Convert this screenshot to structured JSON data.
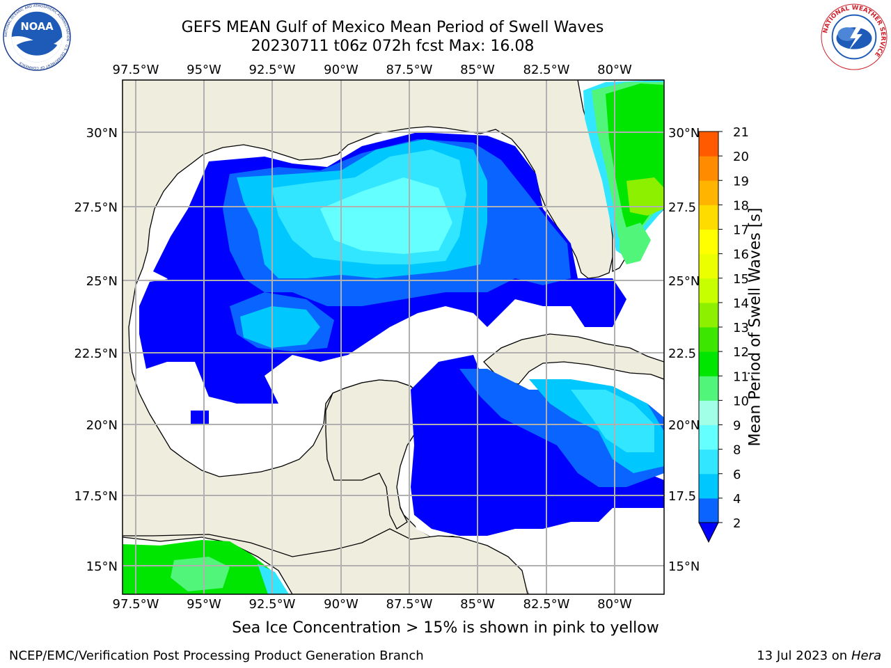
{
  "title_line1": "GEFS MEAN Gulf of Mexico Mean Period of Swell Waves",
  "title_line2": "20230711 t06z 072h fcst   Max: 16.08",
  "logos": {
    "left": {
      "name": "noaa-logo",
      "text": "NOAA",
      "ring": "NATIONAL OCEANIC AND ATMOSPHERIC ADMINISTRATION · U.S. DEPARTMENT OF COMMERCE"
    },
    "right": {
      "name": "nws-logo",
      "ring": "NATIONAL WEATHER SERVICE"
    }
  },
  "map": {
    "lon_labels": [
      "97.5°W",
      "95°W",
      "92.5°W",
      "90°W",
      "87.5°W",
      "85°W",
      "82.5°W",
      "80°W"
    ],
    "lat_labels_left": [
      "30°N",
      "27.5°N",
      "25°N",
      "22.5°N",
      "20°N",
      "17.5°N",
      "15°N"
    ],
    "lat_labels_right": [
      "30°N",
      "27.5",
      "25°N",
      "22.5",
      "20°N",
      "17.5",
      "15°N"
    ],
    "lon_range": [
      -98,
      -78.3
    ],
    "lat_range": [
      14,
      31.6
    ],
    "colors": {
      "land": "#efedde",
      "water": "#ffffff",
      "grid": "#b0b0b0",
      "coast": "#000000"
    }
  },
  "colorbar": {
    "label": "Mean Period of Swell Waves [s]",
    "ticks": [
      "2",
      "4",
      "6",
      "8",
      "9",
      "10",
      "11",
      "12",
      "13",
      "14",
      "15",
      "16",
      "17",
      "18",
      "19",
      "20",
      "21"
    ],
    "colors": [
      "#0a64ff",
      "#00c8ff",
      "#32e6ff",
      "#64ffff",
      "#a0ffe6",
      "#50f57a",
      "#00e600",
      "#3ce600",
      "#8cf000",
      "#c8ff00",
      "#ebff00",
      "#ffff00",
      "#ffdc00",
      "#ffb400",
      "#ff8c00",
      "#ff5a00",
      "#ff2800",
      "#ff0000"
    ],
    "under_color": "#0000ff"
  },
  "caption": "Sea Ice Concentration > 15% is shown in pink to yellow",
  "footer_left": "NCEP/EMC/Verification Post Processing Product Generation Branch",
  "footer_right_prefix": "13 Jul 2023 on ",
  "footer_right_host": "Hera"
}
